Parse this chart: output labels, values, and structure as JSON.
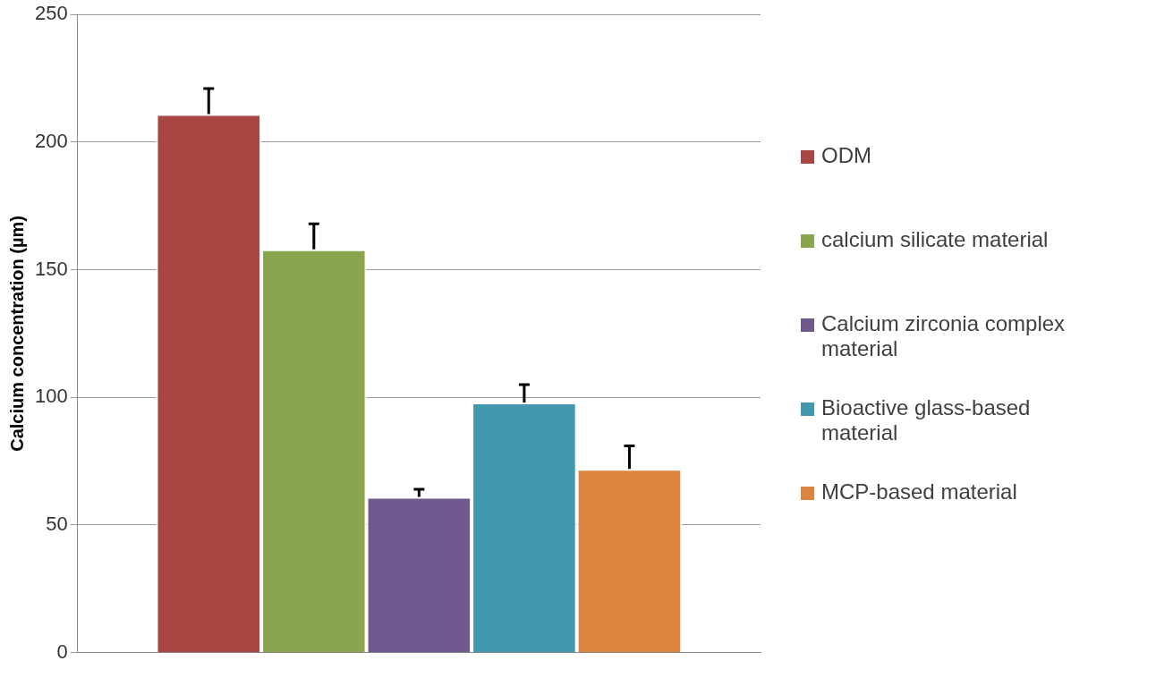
{
  "chart_data": {
    "type": "bar",
    "ylabel": "Calcium concentration (µm)",
    "categories": [
      null
    ],
    "series": [
      {
        "name": "ODM",
        "color": "#a84644",
        "values": [
          211
        ],
        "errors": [
          [
            211,
            221
          ]
        ]
      },
      {
        "name": "calcium silicate material",
        "color": "#89a54e",
        "values": [
          158
        ],
        "errors": [
          [
            158,
            168
          ]
        ]
      },
      {
        "name": "Calcium zirconia complex material",
        "color": "#71588f",
        "values": [
          61
        ],
        "errors": [
          [
            61,
            64
          ]
        ]
      },
      {
        "name": "Bioactive glass-based material",
        "color": "#4198af",
        "values": [
          98
        ],
        "errors": [
          [
            98,
            105
          ]
        ]
      },
      {
        "name": "MCP-based material",
        "color": "#db843d",
        "values": [
          72
        ],
        "errors": [
          [
            72,
            81
          ]
        ]
      }
    ],
    "ylim": [
      0,
      250
    ],
    "yticks": [
      0,
      50,
      100,
      150,
      200,
      250
    ],
    "grid": "y",
    "legend": "right"
  }
}
